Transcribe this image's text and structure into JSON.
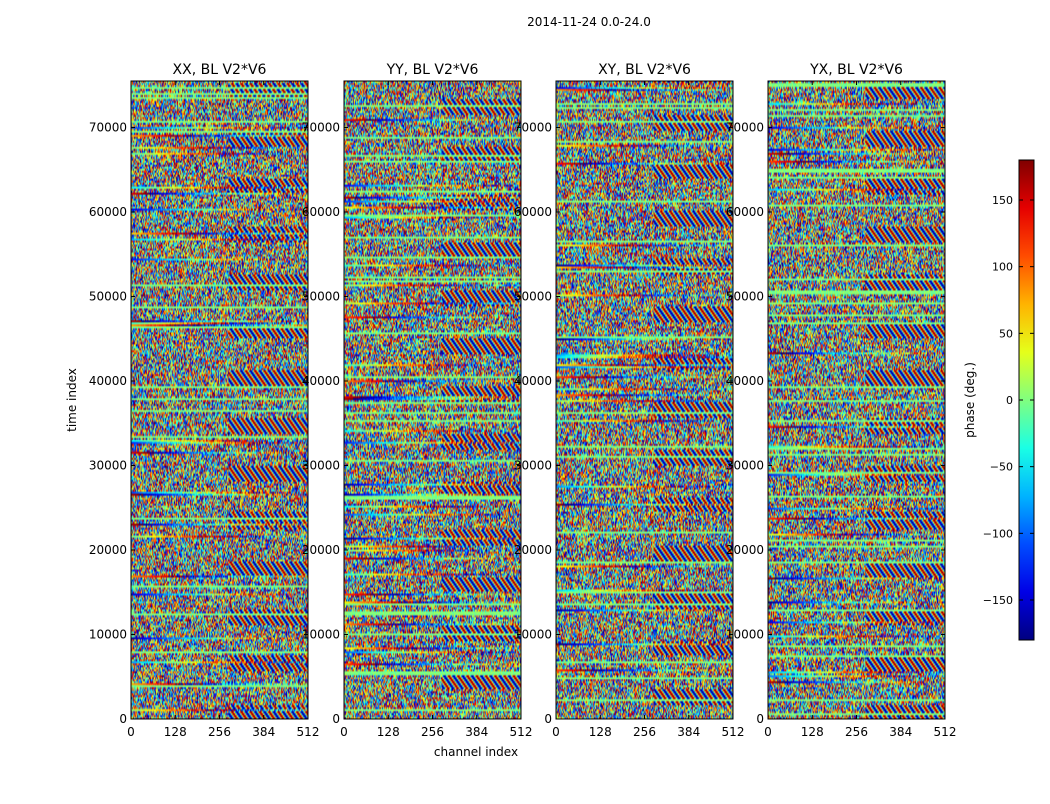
{
  "figure": {
    "suptitle": "2014-11-24 0.0-24.0"
  },
  "chart_data": {
    "type": "heatmap",
    "title": "2014-11-24 0.0-24.0",
    "xlabel": "channel index",
    "ylabel": "time index",
    "xlim": [
      0,
      512
    ],
    "ylim": [
      0,
      75500
    ],
    "xticks": [
      0,
      128,
      256,
      384,
      512
    ],
    "yticks": [
      0,
      10000,
      20000,
      30000,
      40000,
      50000,
      60000,
      70000
    ],
    "xtick_labels": [
      "0",
      "128",
      "256",
      "384",
      "512"
    ],
    "ytick_labels": [
      "0",
      "10000",
      "20000",
      "30000",
      "40000",
      "50000",
      "60000",
      "70000"
    ],
    "colormap": "jet",
    "panels": [
      {
        "title": "XX, BL V2*V6",
        "seed": 11
      },
      {
        "title": "YY, BL V2*V6",
        "seed": 23
      },
      {
        "title": "XY, BL V2*V6",
        "seed": 37
      },
      {
        "title": "YX, BL V2*V6",
        "seed": 53
      }
    ],
    "colorbar": {
      "label": "phase (deg.)",
      "range": [
        -180,
        180
      ],
      "ticks": [
        150,
        100,
        50,
        0,
        -50,
        -100,
        -150
      ],
      "tick_labels": [
        "150",
        "100",
        "50",
        "0",
        "−50",
        "−100",
        "−150"
      ]
    },
    "grid": false
  }
}
